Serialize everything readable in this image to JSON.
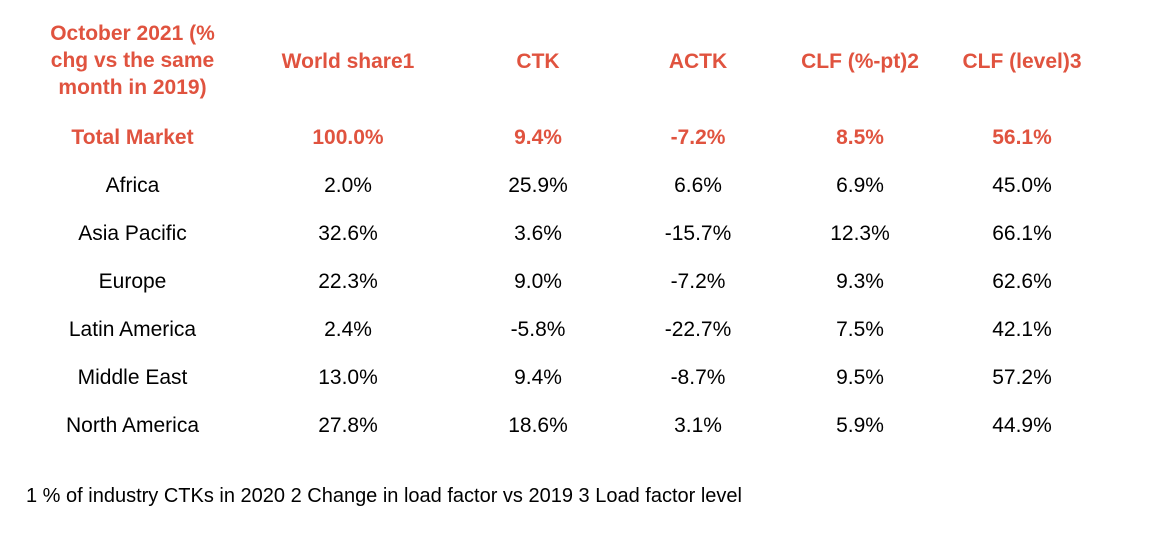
{
  "header": {
    "first_col": "October 2021 (%\nchg vs the same\nmonth in 2019)",
    "columns": [
      "World share1",
      "CTK",
      "ACTK",
      "CLF (%-pt)2",
      "CLF (level)3"
    ]
  },
  "rows": [
    {
      "region": "Total Market",
      "values": [
        "100.0%",
        "9.4%",
        "-7.2%",
        "8.5%",
        "56.1%"
      ]
    },
    {
      "region": "Africa",
      "values": [
        "2.0%",
        "25.9%",
        "6.6%",
        "6.9%",
        "45.0%"
      ]
    },
    {
      "region": "Asia Pacific",
      "values": [
        "32.6%",
        "3.6%",
        "-15.7%",
        "12.3%",
        "66.1%"
      ]
    },
    {
      "region": "Europe",
      "values": [
        "22.3%",
        "9.0%",
        "-7.2%",
        "9.3%",
        "62.6%"
      ]
    },
    {
      "region": "Latin America",
      "values": [
        "2.4%",
        "-5.8%",
        "-22.7%",
        "7.5%",
        "42.1%"
      ]
    },
    {
      "region": "Middle East",
      "values": [
        "13.0%",
        "9.4%",
        "-8.7%",
        "9.5%",
        "57.2%"
      ]
    },
    {
      "region": "North America",
      "values": [
        "27.8%",
        "18.6%",
        "3.1%",
        "5.9%",
        "44.9%"
      ]
    }
  ],
  "footnote": "1 % of industry CTKs in 2020  2 Change in load factor vs 2019  3 Load factor level",
  "colors": {
    "accent": "#e0533f",
    "text": "#000000",
    "background": "#ffffff"
  }
}
